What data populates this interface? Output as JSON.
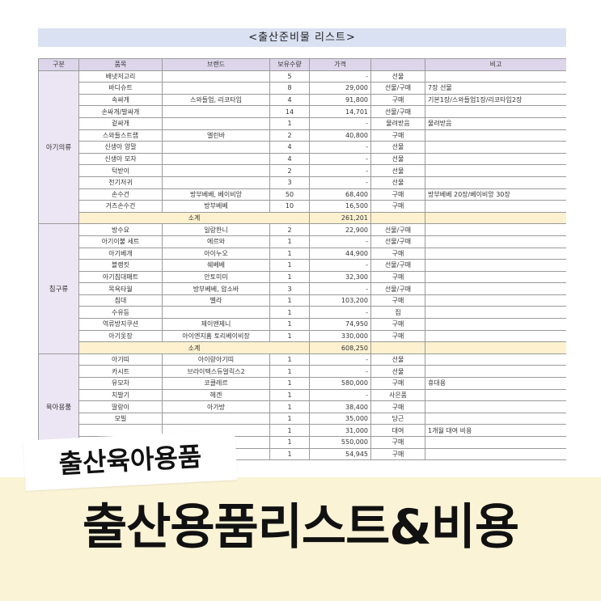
{
  "header": {
    "title": "<출산준비물 리스트>"
  },
  "table": {
    "columns": [
      "구분",
      "품목",
      "브랜드",
      "보유수량",
      "가격",
      null,
      "비고"
    ],
    "sections": [
      {
        "category": "아기의류",
        "rows": [
          [
            "배냇저고리",
            null,
            "5",
            "-",
            "선물",
            null
          ],
          [
            "바디슈트",
            null,
            "8",
            "29,000",
            "선물/구매",
            "7장 선물"
          ],
          [
            "속싸개",
            "스와들업, 리코타임",
            "4",
            "91,800",
            "구매",
            "기본1장/스와들업1장/리코타임2장"
          ],
          [
            "손싸개/발싸개",
            null,
            "14",
            "14,701",
            "선물/구매",
            null
          ],
          [
            "겉싸개",
            null,
            "1",
            "-",
            "물려받음",
            "물려받음"
          ],
          [
            "스와들스트랩",
            "엘린바",
            "2",
            "40,800",
            "구매",
            null
          ],
          [
            "신생아 양말",
            null,
            "4",
            "-",
            "선물",
            null
          ],
          [
            "신생아 모자",
            null,
            "4",
            "-",
            "선물",
            null
          ],
          [
            "턱받이",
            null,
            "2",
            "-",
            "선물",
            null
          ],
          [
            "천기저귀",
            null,
            "3",
            "-",
            "선물",
            null
          ],
          [
            "손수건",
            "방부베베, 베이비앙",
            "50",
            "68,400",
            "구매",
            "방부베베 20장/베이비앙 30장"
          ],
          [
            "거즈손수건",
            "방부베베",
            "10",
            "16,500",
            "구매",
            null
          ]
        ],
        "subtotal_label": "소계",
        "subtotal": "261,201"
      },
      {
        "category": "침구류",
        "rows": [
          [
            "방수요",
            "일랑한니",
            "2",
            "22,900",
            "선물/구매",
            null
          ],
          [
            "아기이불 세트",
            "에르와",
            "1",
            "-",
            "선물/구매",
            null
          ],
          [
            "아기베개",
            "아이누오",
            "1",
            "44,900",
            "구매",
            null
          ],
          [
            "블랭킷",
            "쉐베베",
            "1",
            "-",
            "선물/구매",
            null
          ],
          [
            "아기침대매트",
            "안토미미",
            "1",
            "32,300",
            "구매",
            null
          ],
          [
            "목욕타월",
            "방부베베, 압소바",
            "3",
            "-",
            "선물/구매",
            null
          ],
          [
            "침대",
            "벨라",
            "1",
            "103,200",
            "구매",
            null
          ],
          [
            "수유등",
            null,
            "1",
            "-",
            "집",
            null
          ],
          [
            "역류방지쿠션",
            "제이앤제니",
            "1",
            "74,950",
            "구매",
            null
          ],
          [
            "아기옷장",
            "아이엔지홈 토리베이비장",
            "1",
            "330,000",
            "구매",
            null
          ]
        ],
        "subtotal_label": "소계",
        "subtotal": "608,250"
      },
      {
        "category": "육아용품",
        "rows": [
          [
            "아기띠",
            "아이랑아기띠",
            "1",
            "-",
            "선물",
            null
          ],
          [
            "카시트",
            "브라이텍스듀얼릭스2",
            "1",
            "-",
            "선물",
            null
          ],
          [
            "유모차",
            "코클레르",
            "1",
            "580,000",
            "구매",
            "휴대용"
          ],
          [
            "치발기",
            "헤겐",
            "1",
            "-",
            "사은품",
            null
          ],
          [
            "딸랑이",
            "아가방",
            "1",
            "38,400",
            "구매",
            null
          ],
          [
            "모빌",
            null,
            "1",
            "35,000",
            "당근",
            null
          ],
          [
            null,
            null,
            "1",
            "31,000",
            "대여",
            "1개월 대여 비용"
          ],
          [
            null,
            null,
            "1",
            "550,000",
            "구매",
            null
          ],
          [
            null,
            null,
            "1",
            "54,945",
            "구매",
            null
          ]
        ]
      }
    ]
  },
  "overlay": {
    "tag": "출산육아용품",
    "headline": "출산용품리스트&비용"
  }
}
